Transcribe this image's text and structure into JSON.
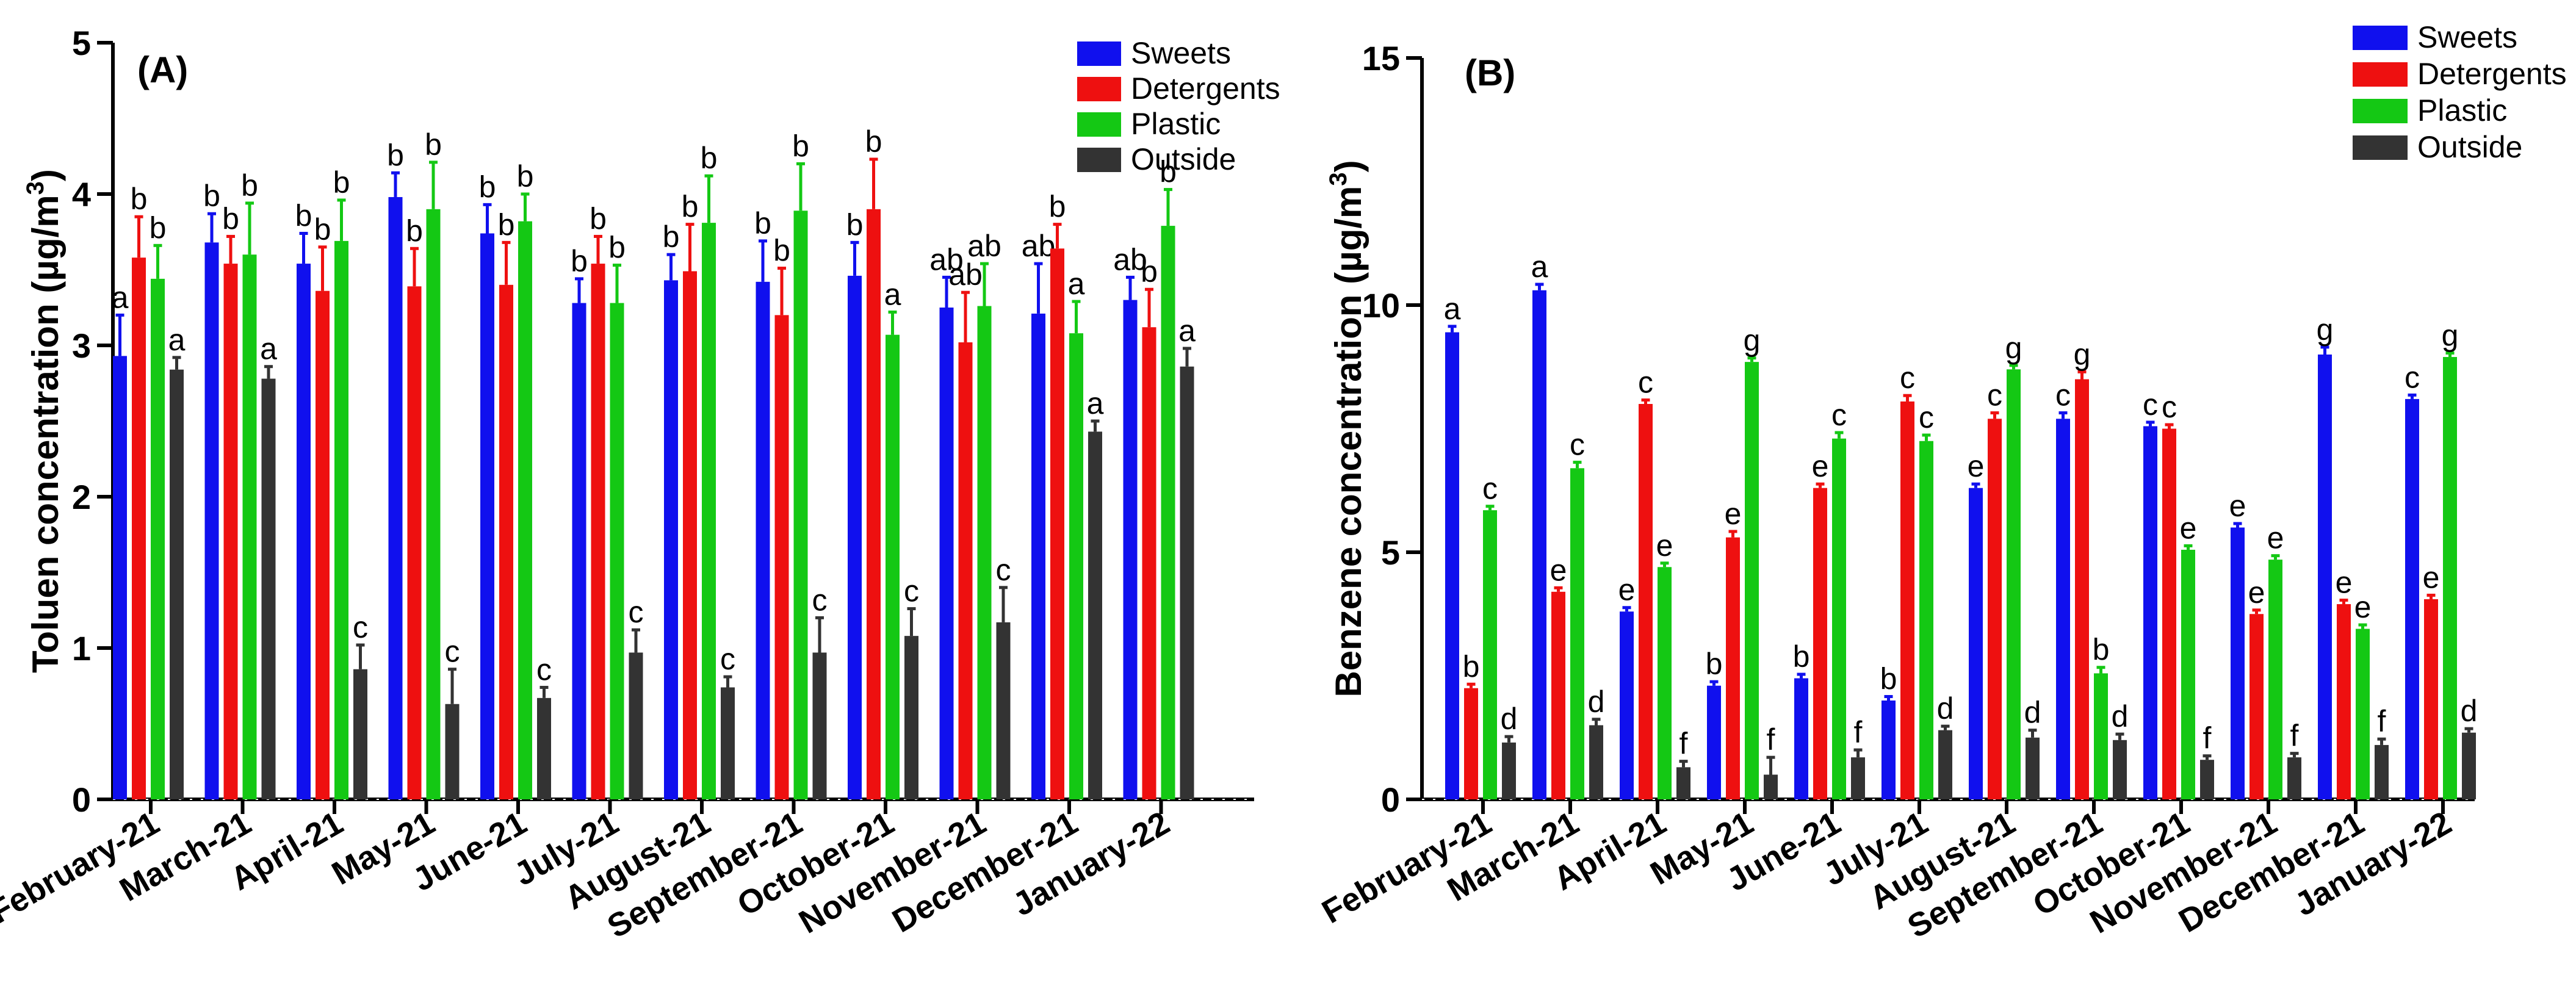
{
  "series_colors": {
    "Sweets": "#1010ee",
    "Detergents": "#ee1010",
    "Plastic": "#14c814",
    "Outside": "#333333"
  },
  "chart_data": [
    {
      "type": "bar",
      "panel_label": "(A)",
      "ylabel": "Toluen concentration (µg/m",
      "ylabel_superscript": "3",
      "ylabel_close": ")",
      "ylim": [
        0,
        5
      ],
      "yticks": [
        0,
        1,
        2,
        3,
        4,
        5
      ],
      "legend_position": "top-right",
      "categories": [
        "February-21",
        "March-21",
        "April-21",
        "May-21",
        "June-21",
        "July-21",
        "August-21",
        "September-21",
        "October-21",
        "November-21",
        "December-21",
        "January-22"
      ],
      "series": [
        {
          "name": "Sweets",
          "values": [
            2.93,
            3.68,
            3.54,
            3.98,
            3.74,
            3.28,
            3.43,
            3.42,
            3.46,
            3.25,
            3.21,
            3.3
          ],
          "errors": [
            0.27,
            0.19,
            0.2,
            0.16,
            0.19,
            0.16,
            0.17,
            0.27,
            0.22,
            0.2,
            0.33,
            0.15
          ],
          "labels": [
            "a",
            "b",
            "b",
            "b",
            "b",
            "b",
            "b",
            "b",
            "b",
            "ab",
            "ab",
            "ab"
          ]
        },
        {
          "name": "Detergents",
          "values": [
            3.58,
            3.54,
            3.36,
            3.39,
            3.4,
            3.54,
            3.49,
            3.2,
            3.9,
            3.02,
            3.64,
            3.12
          ],
          "errors": [
            0.27,
            0.18,
            0.29,
            0.25,
            0.28,
            0.18,
            0.31,
            0.31,
            0.33,
            0.33,
            0.16,
            0.25
          ],
          "labels": [
            "b",
            "b",
            "b",
            "b",
            "b",
            "b",
            "b",
            "b",
            "b",
            "ab",
            "b",
            "b"
          ]
        },
        {
          "name": "Plastic",
          "values": [
            3.44,
            3.6,
            3.69,
            3.9,
            3.82,
            3.28,
            3.81,
            3.89,
            3.07,
            3.26,
            3.08,
            3.79
          ],
          "errors": [
            0.22,
            0.34,
            0.27,
            0.31,
            0.18,
            0.25,
            0.31,
            0.31,
            0.15,
            0.28,
            0.21,
            0.24
          ],
          "labels": [
            "b",
            "b",
            "b",
            "b",
            "b",
            "b",
            "b",
            "b",
            "a",
            "ab",
            "a",
            "b"
          ]
        },
        {
          "name": "Outside",
          "values": [
            2.84,
            2.78,
            0.86,
            0.63,
            0.67,
            0.97,
            0.74,
            0.97,
            1.08,
            1.17,
            2.43,
            2.86
          ],
          "errors": [
            0.08,
            0.08,
            0.16,
            0.23,
            0.07,
            0.15,
            0.07,
            0.23,
            0.18,
            0.23,
            0.07,
            0.12
          ],
          "labels": [
            "a",
            "a",
            "c",
            "c",
            "c",
            "c",
            "c",
            "c",
            "c",
            "c",
            "a",
            "a"
          ]
        }
      ]
    },
    {
      "type": "bar",
      "panel_label": "(B)",
      "ylabel": "Benzene concentration (µg/m",
      "ylabel_superscript": "3",
      "ylabel_close": ")",
      "ylim": [
        0,
        15
      ],
      "yticks": [
        0,
        5,
        10,
        15
      ],
      "legend_position": "top-right",
      "categories": [
        "February-21",
        "March-21",
        "April-21",
        "May-21",
        "June-21",
        "July-21",
        "August-21",
        "September-21",
        "October-21",
        "November-21",
        "December-21",
        "January-22"
      ],
      "series": [
        {
          "name": "Sweets",
          "values": [
            9.45,
            10.3,
            3.8,
            2.3,
            2.45,
            2.0,
            6.3,
            7.7,
            7.55,
            5.5,
            9.0,
            8.1
          ],
          "errors": [
            0.12,
            0.12,
            0.08,
            0.08,
            0.08,
            0.08,
            0.08,
            0.12,
            0.08,
            0.08,
            0.15,
            0.08
          ],
          "labels": [
            "a",
            "a",
            "e",
            "b",
            "b",
            "b",
            "e",
            "c",
            "c",
            "e",
            "g",
            "c"
          ]
        },
        {
          "name": "Detergents",
          "values": [
            2.25,
            4.2,
            8.0,
            5.3,
            6.3,
            8.05,
            7.7,
            8.5,
            7.5,
            3.75,
            3.95,
            4.05
          ],
          "errors": [
            0.08,
            0.08,
            0.08,
            0.12,
            0.08,
            0.12,
            0.12,
            0.15,
            0.08,
            0.08,
            0.08,
            0.08
          ],
          "labels": [
            "b",
            "e",
            "c",
            "e",
            "e",
            "c",
            "c",
            "g",
            "c",
            "e",
            "e",
            "e"
          ]
        },
        {
          "name": "Plastic",
          "values": [
            5.85,
            6.7,
            4.7,
            8.85,
            7.3,
            7.25,
            8.7,
            2.55,
            5.05,
            4.85,
            3.45,
            8.95
          ],
          "errors": [
            0.08,
            0.12,
            0.08,
            0.08,
            0.12,
            0.12,
            0.08,
            0.12,
            0.08,
            0.08,
            0.08,
            0.08
          ],
          "labels": [
            "c",
            "c",
            "e",
            "g",
            "c",
            "c",
            "g",
            "b",
            "e",
            "e",
            "e",
            "g"
          ]
        },
        {
          "name": "Outside",
          "values": [
            1.15,
            1.5,
            0.65,
            0.5,
            0.85,
            1.4,
            1.25,
            1.2,
            0.8,
            0.85,
            1.1,
            1.35
          ],
          "errors": [
            0.12,
            0.12,
            0.12,
            0.35,
            0.15,
            0.08,
            0.15,
            0.12,
            0.08,
            0.08,
            0.12,
            0.08
          ],
          "labels": [
            "d",
            "d",
            "f",
            "f",
            "f",
            "d",
            "d",
            "d",
            "f",
            "f",
            "f",
            "d"
          ]
        }
      ]
    }
  ]
}
